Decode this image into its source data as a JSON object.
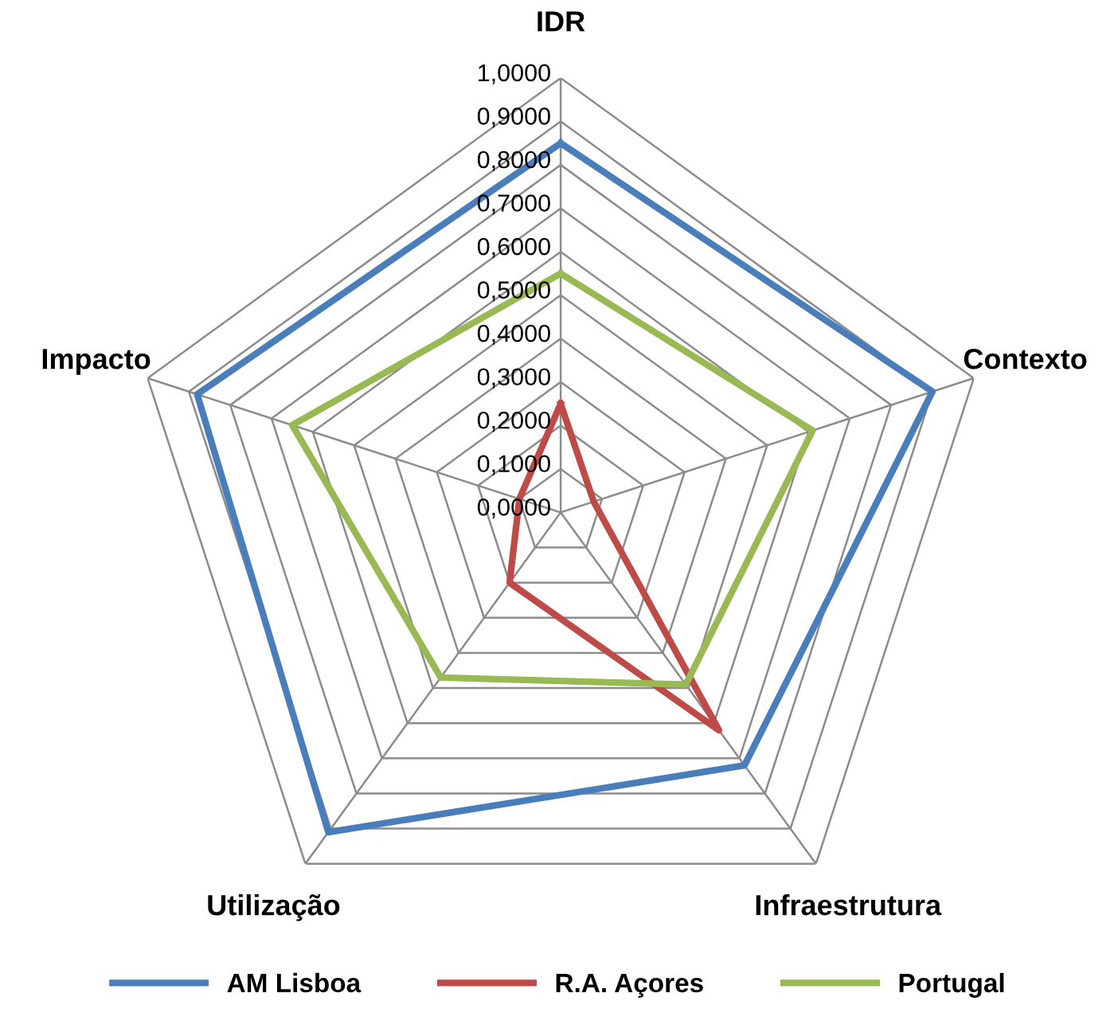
{
  "chart_data": {
    "type": "radar",
    "categories": [
      "IDR",
      "Contexto",
      "Infraestrutura",
      "Utilização",
      "Impacto"
    ],
    "ylim": [
      0,
      1
    ],
    "yticks": [
      {
        "value": 0,
        "label": "0,0000"
      },
      {
        "value": 0.1,
        "label": "0,1000"
      },
      {
        "value": 0.2,
        "label": "0,2000"
      },
      {
        "value": 0.3,
        "label": "0,3000"
      },
      {
        "value": 0.4,
        "label": "0,4000"
      },
      {
        "value": 0.5,
        "label": "0,5000"
      },
      {
        "value": 0.6,
        "label": "0,6000"
      },
      {
        "value": 0.7,
        "label": "0,7000"
      },
      {
        "value": 0.8,
        "label": "0,8000"
      },
      {
        "value": 0.9,
        "label": "0,9000"
      },
      {
        "value": 1,
        "label": "1,0000"
      }
    ],
    "grid": true,
    "legend": "bottom",
    "marker": "none",
    "line_style": "solid",
    "series": [
      {
        "name": "AM Lisboa",
        "color": "#4a7ebb",
        "values": [
          0.85,
          0.9,
          0.72,
          0.91,
          0.88
        ]
      },
      {
        "name": "R.A. Açores",
        "color": "#be4b48",
        "values": [
          0.25,
          0.08,
          0.62,
          0.2,
          0.1
        ]
      },
      {
        "name": "Portugal",
        "color": "#98b954",
        "values": [
          0.55,
          0.61,
          0.49,
          0.47,
          0.65
        ]
      }
    ]
  }
}
